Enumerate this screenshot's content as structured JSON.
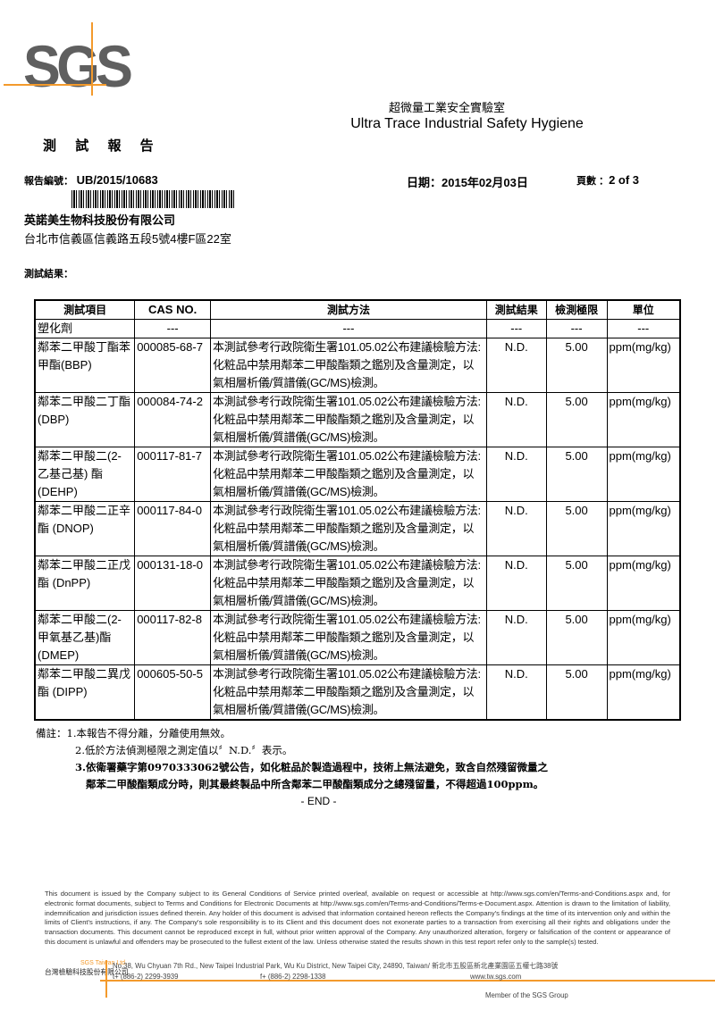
{
  "logo": {
    "text": "SGS",
    "color": "#5f5f5f",
    "accent": "#f39a2c"
  },
  "lab": {
    "name_cn": "超微量工業安全實驗室",
    "name_en": "Ultra Trace Industrial Safety Hygiene"
  },
  "report_title": "測 試 報 告",
  "meta": {
    "report_no_label": "報告編號：",
    "report_no": "UB/2015/10683",
    "date_label": "日期：",
    "date": "2015年02月03日",
    "page_label": "頁數 ：",
    "page": "2 of 3"
  },
  "client": {
    "name": "英諾美生物科技股份有限公司",
    "address": "台北市信義區信義路五段5號4樓F區22室"
  },
  "results_label": "測試結果：",
  "table": {
    "headers": [
      "測試項目",
      "CAS NO.",
      "測試方法",
      "測試結果",
      "檢測極限",
      "單位"
    ],
    "category": [
      "塑化劑",
      "---",
      "---",
      "---",
      "---",
      "---"
    ],
    "rows": [
      {
        "item": "鄰苯二甲酸丁酯苯甲酯(BBP)",
        "cas": "000085-68-7",
        "method": "本測試參考行政院衛生署101.05.02公布建議檢驗方法:化粧品中禁用鄰苯二甲酸酯類之鑑別及含量測定，以氣相層析儀/質譜儀(GC/MS)檢測。",
        "result": "N.D.",
        "limit": "5.00",
        "unit": "ppm(mg/kg)"
      },
      {
        "item": "鄰苯二甲酸二丁酯 (DBP)",
        "cas": "000084-74-2",
        "method": "本測試參考行政院衛生署101.05.02公布建議檢驗方法:化粧品中禁用鄰苯二甲酸酯類之鑑別及含量測定，以氣相層析儀/質譜儀(GC/MS)檢測。",
        "result": "N.D.",
        "limit": "5.00",
        "unit": "ppm(mg/kg)"
      },
      {
        "item": "鄰苯二甲酸二(2-乙基己基) 酯 (DEHP)",
        "cas": "000117-81-7",
        "method": "本測試參考行政院衛生署101.05.02公布建議檢驗方法:化粧品中禁用鄰苯二甲酸酯類之鑑別及含量測定，以氣相層析儀/質譜儀(GC/MS)檢測。",
        "result": "N.D.",
        "limit": "5.00",
        "unit": "ppm(mg/kg)"
      },
      {
        "item": "鄰苯二甲酸二正辛酯 (DNOP)",
        "cas": "000117-84-0",
        "method": "本測試參考行政院衛生署101.05.02公布建議檢驗方法:化粧品中禁用鄰苯二甲酸酯類之鑑別及含量測定，以氣相層析儀/質譜儀(GC/MS)檢測。",
        "result": "N.D.",
        "limit": "5.00",
        "unit": "ppm(mg/kg)"
      },
      {
        "item": "鄰苯二甲酸二正戊酯 (DnPP)",
        "cas": "000131-18-0",
        "method": "本測試參考行政院衛生署101.05.02公布建議檢驗方法:化粧品中禁用鄰苯二甲酸酯類之鑑別及含量測定，以氣相層析儀/質譜儀(GC/MS)檢測。",
        "result": "N.D.",
        "limit": "5.00",
        "unit": "ppm(mg/kg)"
      },
      {
        "item": "鄰苯二甲酸二(2-甲氧基乙基)酯 (DMEP)",
        "cas": "000117-82-8",
        "method": "本測試參考行政院衛生署101.05.02公布建議檢驗方法:化粧品中禁用鄰苯二甲酸酯類之鑑別及含量測定，以氣相層析儀/質譜儀(GC/MS)檢測。",
        "result": "N.D.",
        "limit": "5.00",
        "unit": "ppm(mg/kg)"
      },
      {
        "item": "鄰苯二甲酸二異戊酯 (DIPP)",
        "cas": "000605-50-5",
        "method": "本測試參考行政院衛生署101.05.02公布建議檢驗方法:化粧品中禁用鄰苯二甲酸酯類之鑑別及含量測定，以氣相層析儀/質譜儀(GC/MS)檢測。",
        "result": "N.D.",
        "limit": "5.00",
        "unit": "ppm(mg/kg)"
      }
    ]
  },
  "notes": {
    "label": "備註：",
    "items": [
      "1.本報告不得分離，分離使用無效。",
      "2.低於方法偵測極限之測定值以〞N.D.〞表示。",
      "3.依衛署藥字第0970333062號公告，如化粧品於製造過程中，技術上無法避免，致含自然殘留微量之",
      "鄰苯二甲酸酯類成分時，則其最終製品中所含鄰苯二甲酸酯類成分之總殘留量，不得超過100ppm。"
    ],
    "end": "- END -"
  },
  "disclaimer": {
    "p1": "This document is issued by the Company subject to its General Conditions of Service printed overleaf, available on request or accessible at ",
    "link1": "http://www.sgs.com/en/Terms-and-Conditions.aspx",
    "p2": " and, for electronic format documents, subject to Terms and Conditions for Electronic Documents at ",
    "link2": "http://www.sgs.com/en/Terms-and-Conditions/Terms-e-Document.aspx.",
    "p3": " Attention is drawn to the limitation of liability, indemnification and jurisdiction issues defined therein. Any holder of this document is advised that information contained hereon reflects the Company's findings at the time of its intervention only and within the limits of Client's instructions, if any. The Company's sole responsibility is to its Client and this document does not exonerate parties to a transaction from exercising all their rights and obligations under the transaction documents. This document cannot be reproduced except in full, without prior written approval of the Company. Any unauthorized alteration, forgery or falsification of the content or appearance of this document is unlawful and offenders may be prosecuted to the fullest extent of the law. Unless otherwise stated the results shown in this test report refer only to the sample(s) tested."
  },
  "footer": {
    "company_en": "SGS Taiwan Ltd.",
    "company_cn": "台灣檢驗科技股份有限公司",
    "address": "No.38, Wu Chyuan 7th Rd., New Taipei Industrial Park, Wu Ku District, New Taipei City, 24890, Taiwan/ 新北市五股區新北產業園區五權七路38號",
    "tel": "t+ (886-2) 2299-3939",
    "fax": "f+ (886-2) 2298-1338",
    "web": "www.tw.sgs.com",
    "member": "Member of the SGS Group"
  }
}
